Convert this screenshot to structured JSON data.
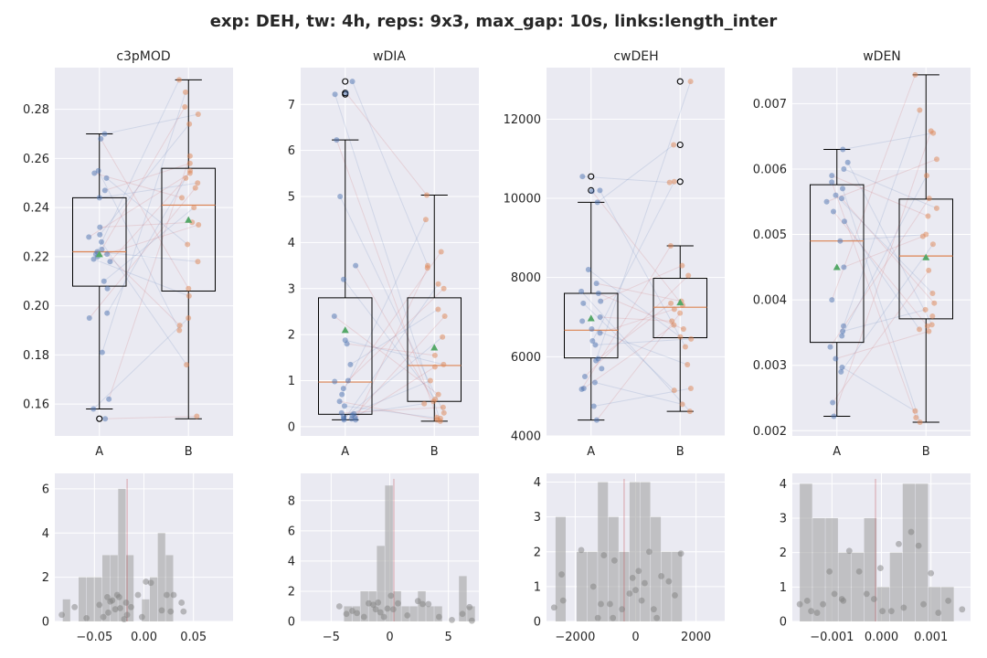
{
  "figure": {
    "suptitle": "exp: DEH, tw: 4h, reps: 9x3, max_gap: 10s, links:length_inter",
    "colors": {
      "background": "#eaeaf2",
      "grid": "#ffffff",
      "group_a": "#4c72b0",
      "group_b": "#dd8452",
      "median": "#dd8452",
      "mean_marker": "#55a868",
      "hist_bar": "#a6a6a6",
      "hist_point": "#7f7f7f",
      "ref_line": "#c44e52",
      "axis_text": "#262626"
    }
  },
  "chart_data": [
    {
      "type": "box",
      "title": "c3pMOD",
      "categories": [
        "A",
        "B"
      ],
      "ylim": [
        0.147,
        0.297
      ],
      "yticks": [
        0.16,
        0.18,
        0.2,
        0.22,
        0.24,
        0.26,
        0.28
      ],
      "yticklabels": [
        "0.16",
        "0.18",
        "0.20",
        "0.22",
        "0.24",
        "0.26",
        "0.28"
      ],
      "boxes": [
        {
          "q1": 0.208,
          "median": 0.222,
          "q3": 0.244,
          "whisker_low": 0.158,
          "whisker_high": 0.27,
          "mean": 0.221,
          "outliers": [
            0.154
          ]
        },
        {
          "q1": 0.206,
          "median": 0.241,
          "q3": 0.256,
          "whisker_low": 0.154,
          "whisker_high": 0.292,
          "mean": 0.235,
          "outliers": []
        }
      ],
      "series": [
        {
          "name": "A",
          "values": [
            0.27,
            0.268,
            0.255,
            0.254,
            0.252,
            0.247,
            0.244,
            0.232,
            0.229,
            0.228,
            0.226,
            0.223,
            0.222,
            0.221,
            0.221,
            0.22,
            0.219,
            0.218,
            0.21,
            0.207,
            0.197,
            0.195,
            0.181,
            0.162,
            0.158,
            0.154
          ]
        },
        {
          "name": "B",
          "values": [
            0.292,
            0.287,
            0.281,
            0.278,
            0.274,
            0.261,
            0.258,
            0.255,
            0.254,
            0.252,
            0.25,
            0.248,
            0.244,
            0.24,
            0.234,
            0.233,
            0.225,
            0.218,
            0.207,
            0.204,
            0.195,
            0.192,
            0.19,
            0.176,
            0.155
          ]
        }
      ]
    },
    {
      "type": "box",
      "title": "wDIA",
      "categories": [
        "A",
        "B"
      ],
      "ylim": [
        -0.2,
        7.8
      ],
      "yticks": [
        0,
        1,
        2,
        3,
        4,
        5,
        6,
        7
      ],
      "yticklabels": [
        "0",
        "1",
        "2",
        "3",
        "4",
        "5",
        "6",
        "7"
      ],
      "boxes": [
        {
          "q1": 0.27,
          "median": 0.97,
          "q3": 2.8,
          "whisker_low": 0.15,
          "whisker_high": 6.23,
          "mean": 2.1,
          "outliers": [
            7.5,
            7.25,
            7.22
          ]
        },
        {
          "q1": 0.55,
          "median": 1.33,
          "q3": 2.8,
          "whisker_low": 0.12,
          "whisker_high": 5.03,
          "mean": 1.72,
          "outliers": []
        }
      ],
      "series": [
        {
          "name": "A",
          "values": [
            7.5,
            7.25,
            7.22,
            6.23,
            5.0,
            3.5,
            3.2,
            2.4,
            1.88,
            1.8,
            1.35,
            1.0,
            0.98,
            0.83,
            0.7,
            0.55,
            0.45,
            0.3,
            0.28,
            0.25,
            0.22,
            0.2,
            0.18,
            0.17,
            0.15,
            0.15
          ]
        },
        {
          "name": "B",
          "values": [
            5.03,
            4.5,
            3.8,
            3.5,
            3.45,
            3.1,
            3.0,
            2.55,
            2.4,
            1.95,
            1.55,
            1.35,
            1.3,
            1.0,
            0.7,
            0.6,
            0.55,
            0.5,
            0.42,
            0.3,
            0.2,
            0.18,
            0.15,
            0.12
          ]
        }
      ]
    },
    {
      "type": "box",
      "title": "cwDEH",
      "categories": [
        "A",
        "B"
      ],
      "ylim": [
        4000,
        13300
      ],
      "yticks": [
        4000,
        6000,
        8000,
        10000,
        12000
      ],
      "yticklabels": [
        "4000",
        "6000",
        "8000",
        "10000",
        "12000"
      ],
      "boxes": [
        {
          "q1": 5970,
          "median": 6670,
          "q3": 7600,
          "whisker_low": 4400,
          "whisker_high": 9900,
          "mean": 6970,
          "outliers": [
            10550,
            10200
          ]
        },
        {
          "q1": 6480,
          "median": 7250,
          "q3": 7980,
          "whisker_low": 4620,
          "whisker_high": 8800,
          "mean": 7370,
          "outliers": [
            12950,
            11350,
            10420
          ]
        }
      ],
      "series": [
        {
          "name": "A",
          "values": [
            10550,
            10200,
            10180,
            9900,
            8200,
            7850,
            7650,
            7600,
            7400,
            7350,
            7000,
            6900,
            6700,
            6600,
            6400,
            6300,
            5950,
            5900,
            5700,
            5500,
            5350,
            5200,
            5180,
            4750,
            4400
          ]
        },
        {
          "name": "B",
          "values": [
            12950,
            11350,
            10420,
            10400,
            8800,
            8300,
            8050,
            7400,
            7350,
            7300,
            7200,
            7100,
            6900,
            6800,
            6700,
            6500,
            6450,
            6250,
            5800,
            5200,
            5150,
            4800,
            4620
          ]
        }
      ]
    },
    {
      "type": "box",
      "title": "wDEN",
      "categories": [
        "A",
        "B"
      ],
      "ylim": [
        0.00192,
        0.00755
      ],
      "yticks": [
        0.002,
        0.003,
        0.004,
        0.005,
        0.006,
        0.007
      ],
      "yticklabels": [
        "0.002",
        "0.003",
        "0.004",
        "0.005",
        "0.006",
        "0.007"
      ],
      "boxes": [
        {
          "q1": 0.00335,
          "median": 0.0049,
          "q3": 0.00576,
          "whisker_low": 0.00222,
          "whisker_high": 0.0063,
          "mean": 0.0045,
          "outliers": []
        },
        {
          "q1": 0.00371,
          "median": 0.00467,
          "q3": 0.00554,
          "whisker_low": 0.00213,
          "whisker_high": 0.00744,
          "mean": 0.00465,
          "outliers": []
        }
      ],
      "series": [
        {
          "name": "A",
          "values": [
            0.0063,
            0.0061,
            0.006,
            0.0059,
            0.0058,
            0.0057,
            0.0056,
            0.00555,
            0.0055,
            0.00535,
            0.0052,
            0.0049,
            0.0045,
            0.004,
            0.0036,
            0.00352,
            0.00345,
            0.00328,
            0.0031,
            0.00297,
            0.0029,
            0.00243,
            0.00222
          ]
        },
        {
          "name": "B",
          "values": [
            0.00744,
            0.0069,
            0.00658,
            0.00655,
            0.00615,
            0.0059,
            0.00555,
            0.0054,
            0.00528,
            0.005,
            0.00497,
            0.00485,
            0.00445,
            0.0041,
            0.00395,
            0.00385,
            0.00375,
            0.00362,
            0.0036,
            0.00355,
            0.00352,
            0.0023,
            0.0022,
            0.00213
          ]
        }
      ]
    },
    {
      "type": "histogram",
      "xlim": [
        -0.09,
        0.09
      ],
      "ylim": [
        0,
        6.7
      ],
      "xticks": [
        -0.05,
        0.0,
        0.05
      ],
      "xticklabels": [
        "−0.05",
        "0.00",
        "0.05"
      ],
      "yticks": [
        0,
        2,
        4,
        6
      ],
      "yticklabels": [
        "0",
        "2",
        "4",
        "6"
      ],
      "bin_edges": [
        -0.082,
        -0.074,
        -0.066,
        -0.058,
        -0.05,
        -0.042,
        -0.034,
        -0.026,
        -0.018,
        -0.01,
        -0.002,
        0.006,
        0.014,
        0.022,
        0.03,
        0.038
      ],
      "counts": [
        1,
        0,
        2,
        2,
        2,
        3,
        3,
        6,
        3,
        0,
        1,
        2,
        4,
        3,
        0
      ],
      "ref_x": -0.017,
      "points": [
        [
          -0.083,
          0.3
        ],
        [
          -0.07,
          0.65
        ],
        [
          -0.058,
          0.15
        ],
        [
          -0.045,
          0.75
        ],
        [
          -0.041,
          0.2
        ],
        [
          -0.037,
          1.1
        ],
        [
          -0.036,
          0.4
        ],
        [
          -0.034,
          0.9
        ],
        [
          -0.032,
          0.95
        ],
        [
          -0.029,
          0.55
        ],
        [
          -0.027,
          1.2
        ],
        [
          -0.025,
          1.1
        ],
        [
          -0.024,
          0.6
        ],
        [
          -0.02,
          0.1
        ],
        [
          -0.018,
          0.85
        ],
        [
          -0.017,
          0.3
        ],
        [
          -0.013,
          0.65
        ],
        [
          -0.006,
          1.2
        ],
        [
          -0.002,
          0.2
        ],
        [
          0.002,
          1.8
        ],
        [
          0.007,
          1.75
        ],
        [
          0.018,
          0.5
        ],
        [
          0.023,
          1.2
        ],
        [
          0.027,
          0.45
        ],
        [
          0.03,
          1.2
        ],
        [
          0.038,
          0.85
        ],
        [
          0.04,
          0.45
        ]
      ]
    },
    {
      "type": "histogram",
      "xlim": [
        -7.6,
        7.6
      ],
      "ylim": [
        0,
        9.8
      ],
      "xticks": [
        -5,
        0,
        5
      ],
      "xticklabels": [
        "−5",
        "0",
        "5"
      ],
      "yticks": [
        0,
        2,
        4,
        6,
        8
      ],
      "yticklabels": [
        "0",
        "2",
        "4",
        "6",
        "8"
      ],
      "bin_edges": [
        -4.6,
        -3.9,
        -3.2,
        -2.5,
        -1.8,
        -1.1,
        -0.4,
        0.3,
        1.0,
        1.7,
        2.4,
        3.1,
        3.8,
        4.5,
        5.2,
        5.9,
        6.6,
        7.3
      ],
      "counts": [
        0,
        1,
        1,
        2,
        2,
        5,
        9,
        2,
        1,
        1,
        2,
        1,
        1,
        0,
        0,
        3,
        1
      ],
      "ref_x": 0.35,
      "points": [
        [
          -4.3,
          1.0
        ],
        [
          -3.7,
          0.5
        ],
        [
          -3.2,
          0.7
        ],
        [
          -2.8,
          0.55
        ],
        [
          -2.2,
          0.3
        ],
        [
          -1.8,
          1.2
        ],
        [
          -1.4,
          1.1
        ],
        [
          -1.2,
          0.8
        ],
        [
          -1.0,
          1.25
        ],
        [
          -0.8,
          0.6
        ],
        [
          -0.5,
          0.3
        ],
        [
          -0.2,
          0.85
        ],
        [
          0.1,
          1.7
        ],
        [
          0.3,
          0.8
        ],
        [
          0.7,
          1.2
        ],
        [
          1.5,
          0.4
        ],
        [
          2.4,
          1.35
        ],
        [
          2.8,
          1.15
        ],
        [
          3.3,
          1.15
        ],
        [
          4.2,
          0.3
        ],
        [
          5.3,
          0.1
        ],
        [
          6.2,
          0.5
        ],
        [
          6.8,
          0.95
        ],
        [
          7.0,
          0.05
        ]
      ]
    },
    {
      "type": "histogram",
      "xlim": [
        -2950,
        2950
      ],
      "ylim": [
        0,
        4.25
      ],
      "xticks": [
        -2000,
        0,
        2000
      ],
      "xticklabels": [
        "−2000",
        "0",
        "2000"
      ],
      "yticks": [
        0,
        1,
        2,
        3,
        4
      ],
      "yticklabels": [
        "0",
        "1",
        "2",
        "3",
        "4"
      ],
      "bin_edges": [
        -2650,
        -2300,
        -1950,
        -1600,
        -1250,
        -900,
        -550,
        -200,
        150,
        500,
        850,
        1200,
        1550
      ],
      "counts": [
        3,
        0,
        2,
        2,
        4,
        3,
        2,
        4,
        4,
        3,
        2,
        2
      ],
      "ref_x": -380,
      "points": [
        [
          -2700,
          0.4
        ],
        [
          -2450,
          1.35
        ],
        [
          -2400,
          0.6
        ],
        [
          -1800,
          2.05
        ],
        [
          -1400,
          1.0
        ],
        [
          -1250,
          0.1
        ],
        [
          -1150,
          0.5
        ],
        [
          -1050,
          1.9
        ],
        [
          -850,
          0.5
        ],
        [
          -750,
          0.1
        ],
        [
          -700,
          1.75
        ],
        [
          -450,
          0.35
        ],
        [
          -200,
          0.8
        ],
        [
          -100,
          1.25
        ],
        [
          0,
          0.9
        ],
        [
          100,
          1.45
        ],
        [
          200,
          0.6
        ],
        [
          300,
          1.1
        ],
        [
          450,
          2.0
        ],
        [
          600,
          0.35
        ],
        [
          700,
          0.1
        ],
        [
          850,
          1.3
        ],
        [
          1100,
          1.15
        ],
        [
          1300,
          0.75
        ],
        [
          1500,
          1.95
        ]
      ]
    },
    {
      "type": "histogram",
      "xlim": [
        -0.0018,
        0.0018
      ],
      "ylim": [
        0,
        4.3
      ],
      "xticks": [
        -0.001,
        0.0,
        0.001
      ],
      "xticklabels": [
        "−0.001",
        "0.000",
        "0.001"
      ],
      "yticks": [
        0,
        1,
        2,
        3,
        4
      ],
      "yticklabels": [
        "0",
        "1",
        "2",
        "3",
        "4"
      ],
      "bin_edges": [
        -0.00165,
        -0.00139,
        -0.00113,
        -0.00087,
        -0.00061,
        -0.00035,
        -9e-05,
        0.00017,
        0.00043,
        0.00069,
        0.00095,
        0.00121,
        0.00147
      ],
      "counts": [
        4,
        3,
        3,
        2,
        2,
        3,
        1,
        2,
        4,
        4,
        1,
        1
      ],
      "ref_x": -0.00012,
      "points": [
        [
          -0.00165,
          0.5
        ],
        [
          -0.0015,
          0.6
        ],
        [
          -0.00142,
          0.3
        ],
        [
          -0.0013,
          0.25
        ],
        [
          -0.00118,
          0.5
        ],
        [
          -0.00105,
          1.45
        ],
        [
          -0.00095,
          0.8
        ],
        [
          -0.0008,
          0.65
        ],
        [
          -0.00077,
          0.6
        ],
        [
          -0.00065,
          2.05
        ],
        [
          -0.00045,
          1.45
        ],
        [
          -0.0003,
          0.8
        ],
        [
          -0.00015,
          0.65
        ],
        [
          -2e-05,
          1.55
        ],
        [
          2e-05,
          0.3
        ],
        [
          0.0002,
          0.3
        ],
        [
          0.00035,
          2.25
        ],
        [
          0.00045,
          0.4
        ],
        [
          0.0006,
          2.6
        ],
        [
          0.00075,
          2.2
        ],
        [
          0.00085,
          0.5
        ],
        [
          0.001,
          1.4
        ],
        [
          0.00115,
          0.25
        ],
        [
          0.00135,
          0.6
        ],
        [
          0.00163,
          0.35
        ]
      ]
    }
  ]
}
